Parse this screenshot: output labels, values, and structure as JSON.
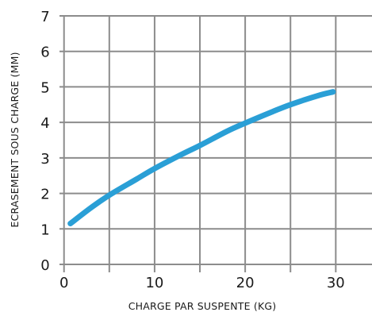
{
  "chart_data": {
    "type": "line",
    "xlabel": "CHARGE PAR SUSPENTE (KG)",
    "ylabel": "ECRASEMENT SOUS CHARGE (MM)",
    "xlim": [
      -0.5,
      34
    ],
    "ylim": [
      0,
      7
    ],
    "xticks": [
      "0",
      "10",
      "20",
      "30"
    ],
    "yticks": [
      "0",
      "1",
      "2",
      "3",
      "4",
      "5",
      "6",
      "7"
    ],
    "grid": true,
    "line_color": "#2a9fd6",
    "grid_color": "#8c8c8c",
    "series": [
      {
        "x": [
          0.7,
          3,
          5,
          8,
          10,
          13,
          15,
          18,
          20,
          23,
          25,
          28,
          29.7
        ],
        "y": [
          1.15,
          1.6,
          1.95,
          2.4,
          2.7,
          3.1,
          3.35,
          3.75,
          3.98,
          4.3,
          4.5,
          4.75,
          4.86
        ]
      }
    ]
  }
}
